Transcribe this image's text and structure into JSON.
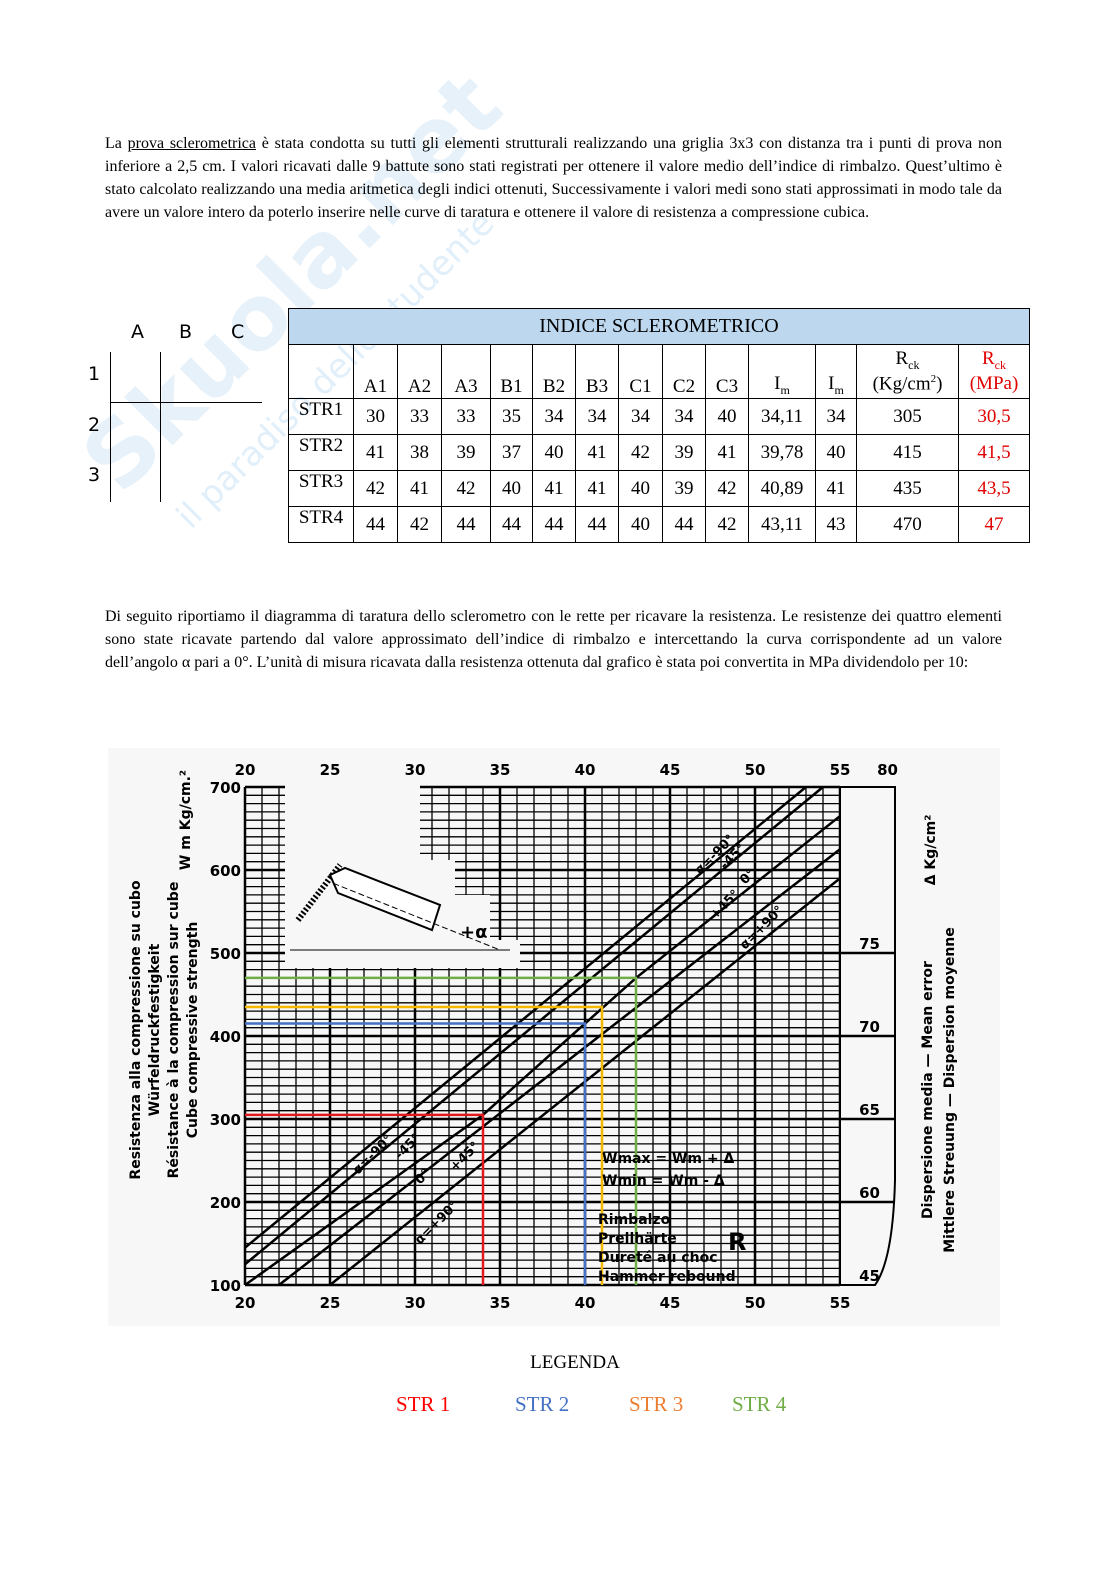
{
  "watermark": {
    "logo": "Skuola.net",
    "tagline": "il paradiso dello studente"
  },
  "intro": {
    "before_link": "La ",
    "link": "prova sclerometrica",
    "after_link": " è stata condotta su tutti gli elementi strutturali realizzando una griglia 3x3 con distanza tra i punti di prova non inferiore a 2,5 cm. I valori ricavati dalle 9 battute sono stati registrati per ottenere il valore medio dell’indice di rimbalzo. Quest’ultimo è stato calcolato realizzando una media aritmetica degli indici ottenuti, Successivamente i valori medi sono stati approssimati in modo tale da avere un valore intero da poterlo inserire nelle curve di taratura e ottenere il valore di resistenza a compressione cubica."
  },
  "grid_sketch": {
    "columns": [
      "A",
      "B",
      "C"
    ],
    "rows": [
      "1",
      "2",
      "3"
    ]
  },
  "table": {
    "title": "INDICE SCLEROMETRICO",
    "columns": [
      "A1",
      "A2",
      "A3",
      "B1",
      "B2",
      "B3",
      "C1",
      "C2",
      "C3"
    ],
    "im1": {
      "main": "I",
      "sub": "m"
    },
    "im2": {
      "main": "I",
      "sub": "m"
    },
    "rck_kg": {
      "main": "R",
      "sub": "ck",
      "unit": "(Kg/cm",
      "sup": "2",
      "close": ")"
    },
    "rck_mpa": {
      "main": "R",
      "sub": "ck",
      "unit": "(MPa)"
    },
    "rows": [
      {
        "label": "STR1",
        "values": [
          "30",
          "33",
          "33",
          "35",
          "34",
          "34",
          "34",
          "34",
          "40"
        ],
        "im_mean": "34,11",
        "im": "34",
        "rck_kg": "305",
        "rck_mpa": "30,5"
      },
      {
        "label": "STR2",
        "values": [
          "41",
          "38",
          "39",
          "37",
          "40",
          "41",
          "42",
          "39",
          "41"
        ],
        "im_mean": "39,78",
        "im": "40",
        "rck_kg": "415",
        "rck_mpa": "41,5"
      },
      {
        "label": "STR3",
        "values": [
          "42",
          "41",
          "42",
          "40",
          "41",
          "41",
          "40",
          "39",
          "42"
        ],
        "im_mean": "40,89",
        "im": "41",
        "rck_kg": "435",
        "rck_mpa": "43,5"
      },
      {
        "label": "STR4",
        "values": [
          "44",
          "42",
          "44",
          "44",
          "44",
          "44",
          "40",
          "44",
          "42"
        ],
        "im_mean": "43,11",
        "im": "43",
        "rck_kg": "470",
        "rck_mpa": "47"
      }
    ]
  },
  "second_para": "Di seguito riportiamo il diagramma di taratura dello sclerometro con le rette per ricavare la resistenza. Le resistenze dei quattro elementi sono state ricavate partendo dal valore approssimato dell’indice di rimbalzo e intercettando la curva corrispondente ad un valore dell’angolo α pari a 0°. L’unità di misura ricavata dalla resistenza ottenuta dal grafico è stata poi convertita in MPa dividendolo per 10:",
  "chart_data": {
    "type": "line",
    "xlim": [
      20,
      55
    ],
    "ylim": [
      100,
      700
    ],
    "x_ticks": [
      "20",
      "25",
      "30",
      "35",
      "40",
      "45",
      "50",
      "55"
    ],
    "y_ticks": [
      "100",
      "200",
      "300",
      "400",
      "500",
      "600",
      "700"
    ],
    "ylabel_unit": "W m Kg/cm.²",
    "ylabel": [
      "Resistenza alla compressione su cubo",
      "Würfeldruckfestigkeit",
      "Résistance à la compression sur cube",
      "Cube compressive strength"
    ],
    "xlabel": [
      "Rimbalzo",
      "Prellhärte",
      "Dureté au choc",
      "Hammer rebound"
    ],
    "x_symbol": "R",
    "formulas": [
      "Wmax = Wm + Δ",
      "Wmin = Wm - Δ"
    ],
    "right_axis": {
      "label": "Δ Kg/cm²",
      "ticks": [
        "80",
        "75",
        "70",
        "65",
        "60",
        "45"
      ],
      "title": [
        "Dispersione media — Mean error",
        "Mittlere Streuung — Dispersion moyenne"
      ]
    },
    "inset_label": "+α",
    "grid": true,
    "curves": [
      {
        "name": "α=-90°",
        "points": [
          [
            20,
            145
          ],
          [
            53,
            700
          ]
        ]
      },
      {
        "name": "-45°",
        "points": [
          [
            20,
            125
          ],
          [
            54,
            700
          ]
        ]
      },
      {
        "name": "0°",
        "points": [
          [
            20,
            100
          ],
          [
            34,
            305
          ],
          [
            43,
            470
          ],
          [
            55,
            665
          ]
        ]
      },
      {
        "name": "+45°",
        "points": [
          [
            22,
            100
          ],
          [
            55,
            625
          ]
        ]
      },
      {
        "name": "α=+90°",
        "points": [
          [
            25,
            100
          ],
          [
            55,
            590
          ]
        ]
      }
    ],
    "readings": [
      {
        "name": "STR 1",
        "x": 34,
        "y": 305,
        "color": "#e31a1c"
      },
      {
        "name": "STR 2",
        "x": 40,
        "y": 415,
        "color": "#4472c4"
      },
      {
        "name": "STR 3",
        "x": 41,
        "y": 435,
        "color": "#f5b800"
      },
      {
        "name": "STR 4",
        "x": 43,
        "y": 470,
        "color": "#70ad47"
      }
    ]
  },
  "legend": {
    "title": "LEGENDA",
    "items": [
      {
        "label": "STR 1",
        "color": "#ff0000"
      },
      {
        "label": "STR 2",
        "color": "#4472c4"
      },
      {
        "label": "STR 3",
        "color": "#ed7d31"
      },
      {
        "label": "STR 4",
        "color": "#70ad47"
      }
    ]
  }
}
